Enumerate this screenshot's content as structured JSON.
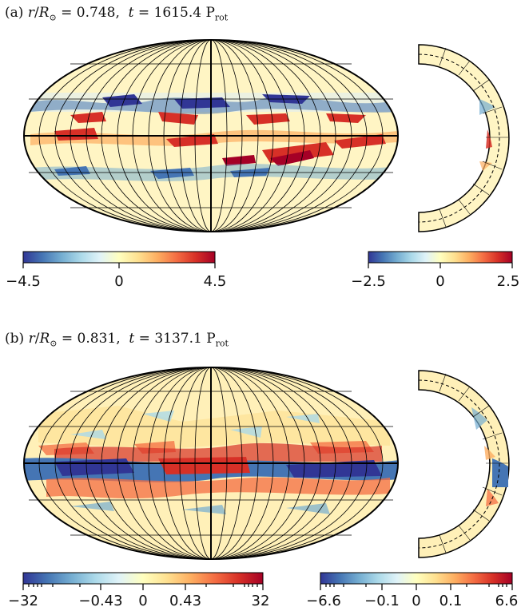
{
  "figure": {
    "panel_a": {
      "label": "(a)",
      "r_value": "0.748",
      "t_value": "1615.4",
      "unit": "P",
      "unit_sub": "rot",
      "colorbar_main": {
        "min": "−4.5",
        "mid": "0",
        "max": "4.5"
      },
      "colorbar_side": {
        "min": "−2.5",
        "mid": "0",
        "max": "2.5"
      }
    },
    "panel_b": {
      "label": "(b)",
      "r_value": "0.831",
      "t_value": "3137.1",
      "unit": "P",
      "unit_sub": "rot",
      "colorbar_main": {
        "t1": "−32",
        "t2": "−0.43",
        "t3": "0",
        "t4": "0.43",
        "t5": "32"
      },
      "colorbar_side": {
        "t1": "−6.6",
        "t2": "−0.1",
        "t3": "0",
        "t4": "0.1",
        "t5": "6.6"
      }
    },
    "colormap": [
      "#313695",
      "#4575b4",
      "#74add1",
      "#abd9e9",
      "#e0f3f8",
      "#ffffbf",
      "#fee090",
      "#fdae61",
      "#f46d43",
      "#d73027",
      "#a50026"
    ]
  }
}
